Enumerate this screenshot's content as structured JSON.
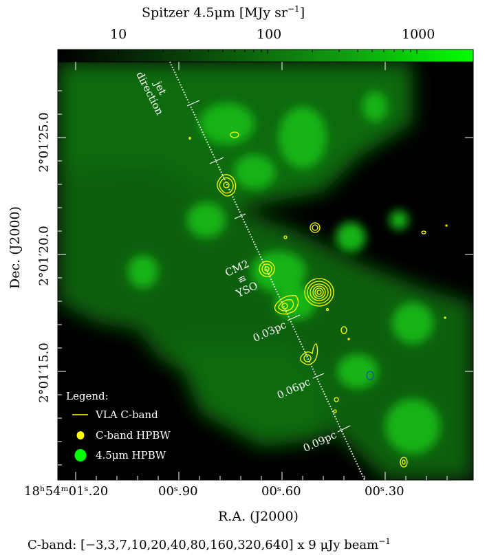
{
  "colorbar": {
    "title": "Spitzer 4.5μm [MJy sr",
    "title_exp": "−1",
    "title_close": "]",
    "ticks": [
      "10",
      "100",
      "1000"
    ],
    "colormap": [
      "#000000",
      "#00ff00"
    ],
    "scale": "log"
  },
  "axes": {
    "ylabel": "Dec. (J2000)",
    "xlabel": "R.A. (J2000)",
    "yticks": [
      {
        "label": "2°01′25.0"
      },
      {
        "label": "2°01′20.0"
      },
      {
        "label": "2°01′15.0"
      }
    ],
    "xticks": [
      {
        "label": "18ʰ54ᵐ01ˢ.20"
      },
      {
        "label": "00ˢ.90"
      },
      {
        "label": "00ˢ.60"
      },
      {
        "label": "00ˢ.30"
      }
    ]
  },
  "annotations": {
    "jet_direction": [
      "jet",
      "direction"
    ],
    "source": [
      "CM2",
      "≡",
      "YSO"
    ],
    "scale_marks": [
      "0.03pc",
      "0.06pc",
      "0.09pc"
    ]
  },
  "legend": {
    "title": "Legend:",
    "items": [
      "VLA C-band",
      "C-band HPBW",
      "4.5μm HPBW"
    ],
    "colors": [
      "#ffff00",
      "#ffff00",
      "#00ff00"
    ]
  },
  "caption": "C-band: [−3,3,7,10,20,40,80,160,320,640] x 9 μJy beam",
  "caption_exp": "−1",
  "contour_color": "#ffff00"
}
